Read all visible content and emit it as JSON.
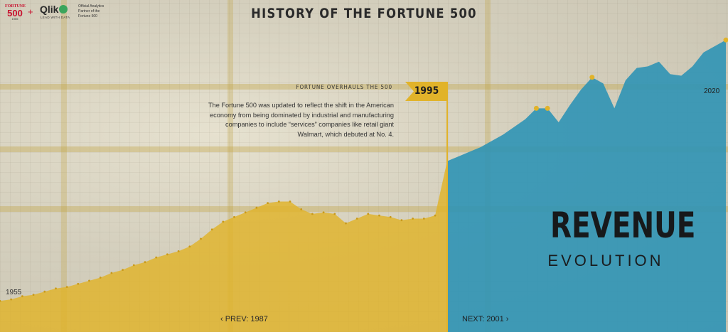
{
  "page": {
    "title": "HISTORY OF THE FORTUNE 500"
  },
  "logos": {
    "fortune_wordmark": "FORTUNE",
    "fortune_number": "500",
    "fortune_year": "1955",
    "plus": "+",
    "qlik_name": "Qlik",
    "qlik_tagline": "LEAD WITH DATA",
    "partner_lines": [
      "Official Analytics",
      "Partner of the",
      "Fortune 500"
    ]
  },
  "annotation": {
    "heading": "FORTUNE OVERHAULS THE 500",
    "body_lines": [
      "The Fortune 500 was updated to reflect the shift in the American",
      "economy from being dominated by industrial and manufacturing",
      "companies to include “services” companies like retail giant",
      "Walmart, which debuted at No. 4."
    ],
    "year_flag": "1995"
  },
  "revenue_label": {
    "title": "REVENUE",
    "subtitle": "EVOLUTION"
  },
  "navigation": {
    "prev": "‹ PREV: 1987",
    "next": "NEXT: 2001 ›"
  },
  "colors": {
    "past_fill": "#e1b32a",
    "future_fill": "#2f93b5",
    "marker": "#e1b32a",
    "flag": "#e1b32a"
  },
  "chart_data": {
    "type": "area",
    "x_start_label": "1955",
    "x_end_label": "2020",
    "highlight_year": 1995,
    "y_unit": "relative",
    "ylim": [
      0,
      100
    ],
    "points": [
      {
        "year": 1955,
        "value": 10
      },
      {
        "year": 1956,
        "value": 10.5
      },
      {
        "year": 1957,
        "value": 11.5
      },
      {
        "year": 1958,
        "value": 12
      },
      {
        "year": 1959,
        "value": 13
      },
      {
        "year": 1960,
        "value": 14
      },
      {
        "year": 1961,
        "value": 14.5
      },
      {
        "year": 1962,
        "value": 15.5
      },
      {
        "year": 1963,
        "value": 16.5
      },
      {
        "year": 1964,
        "value": 17.5
      },
      {
        "year": 1965,
        "value": 19
      },
      {
        "year": 1966,
        "value": 20
      },
      {
        "year": 1967,
        "value": 21.5
      },
      {
        "year": 1968,
        "value": 22.5
      },
      {
        "year": 1969,
        "value": 24
      },
      {
        "year": 1970,
        "value": 25
      },
      {
        "year": 1971,
        "value": 26
      },
      {
        "year": 1972,
        "value": 27.5
      },
      {
        "year": 1973,
        "value": 30
      },
      {
        "year": 1974,
        "value": 33
      },
      {
        "year": 1975,
        "value": 35.5
      },
      {
        "year": 1976,
        "value": 37
      },
      {
        "year": 1977,
        "value": 38.5
      },
      {
        "year": 1978,
        "value": 40
      },
      {
        "year": 1979,
        "value": 41.5
      },
      {
        "year": 1980,
        "value": 42
      },
      {
        "year": 1981,
        "value": 42
      },
      {
        "year": 1982,
        "value": 39.5
      },
      {
        "year": 1983,
        "value": 38
      },
      {
        "year": 1984,
        "value": 38.5
      },
      {
        "year": 1985,
        "value": 38
      },
      {
        "year": 1986,
        "value": 35
      },
      {
        "year": 1987,
        "value": 36.5
      },
      {
        "year": 1988,
        "value": 38
      },
      {
        "year": 1989,
        "value": 37.5
      },
      {
        "year": 1990,
        "value": 37
      },
      {
        "year": 1991,
        "value": 36
      },
      {
        "year": 1992,
        "value": 36.5
      },
      {
        "year": 1993,
        "value": 36.5
      },
      {
        "year": 1994,
        "value": 37.5
      },
      {
        "year": 1995,
        "value": 55
      },
      {
        "year": 1996,
        "value": 56.5
      },
      {
        "year": 1997,
        "value": 58
      },
      {
        "year": 1998,
        "value": 59.5
      },
      {
        "year": 1999,
        "value": 61.5
      },
      {
        "year": 2000,
        "value": 63.5
      },
      {
        "year": 2001,
        "value": 66
      },
      {
        "year": 2002,
        "value": 68.5
      },
      {
        "year": 2003,
        "value": 72
      },
      {
        "year": 2004,
        "value": 72
      },
      {
        "year": 2005,
        "value": 67.5
      },
      {
        "year": 2006,
        "value": 73
      },
      {
        "year": 2007,
        "value": 78
      },
      {
        "year": 2008,
        "value": 82
      },
      {
        "year": 2009,
        "value": 80
      },
      {
        "year": 2010,
        "value": 72
      },
      {
        "year": 2011,
        "value": 81
      },
      {
        "year": 2012,
        "value": 85
      },
      {
        "year": 2013,
        "value": 85.5
      },
      {
        "year": 2014,
        "value": 87
      },
      {
        "year": 2015,
        "value": 83
      },
      {
        "year": 2016,
        "value": 82.5
      },
      {
        "year": 2017,
        "value": 85.5
      },
      {
        "year": 2018,
        "value": 90
      },
      {
        "year": 2019,
        "value": 92
      },
      {
        "year": 2020,
        "value": 94
      }
    ],
    "marked_years": [
      2003,
      2004,
      2008,
      2020
    ]
  }
}
